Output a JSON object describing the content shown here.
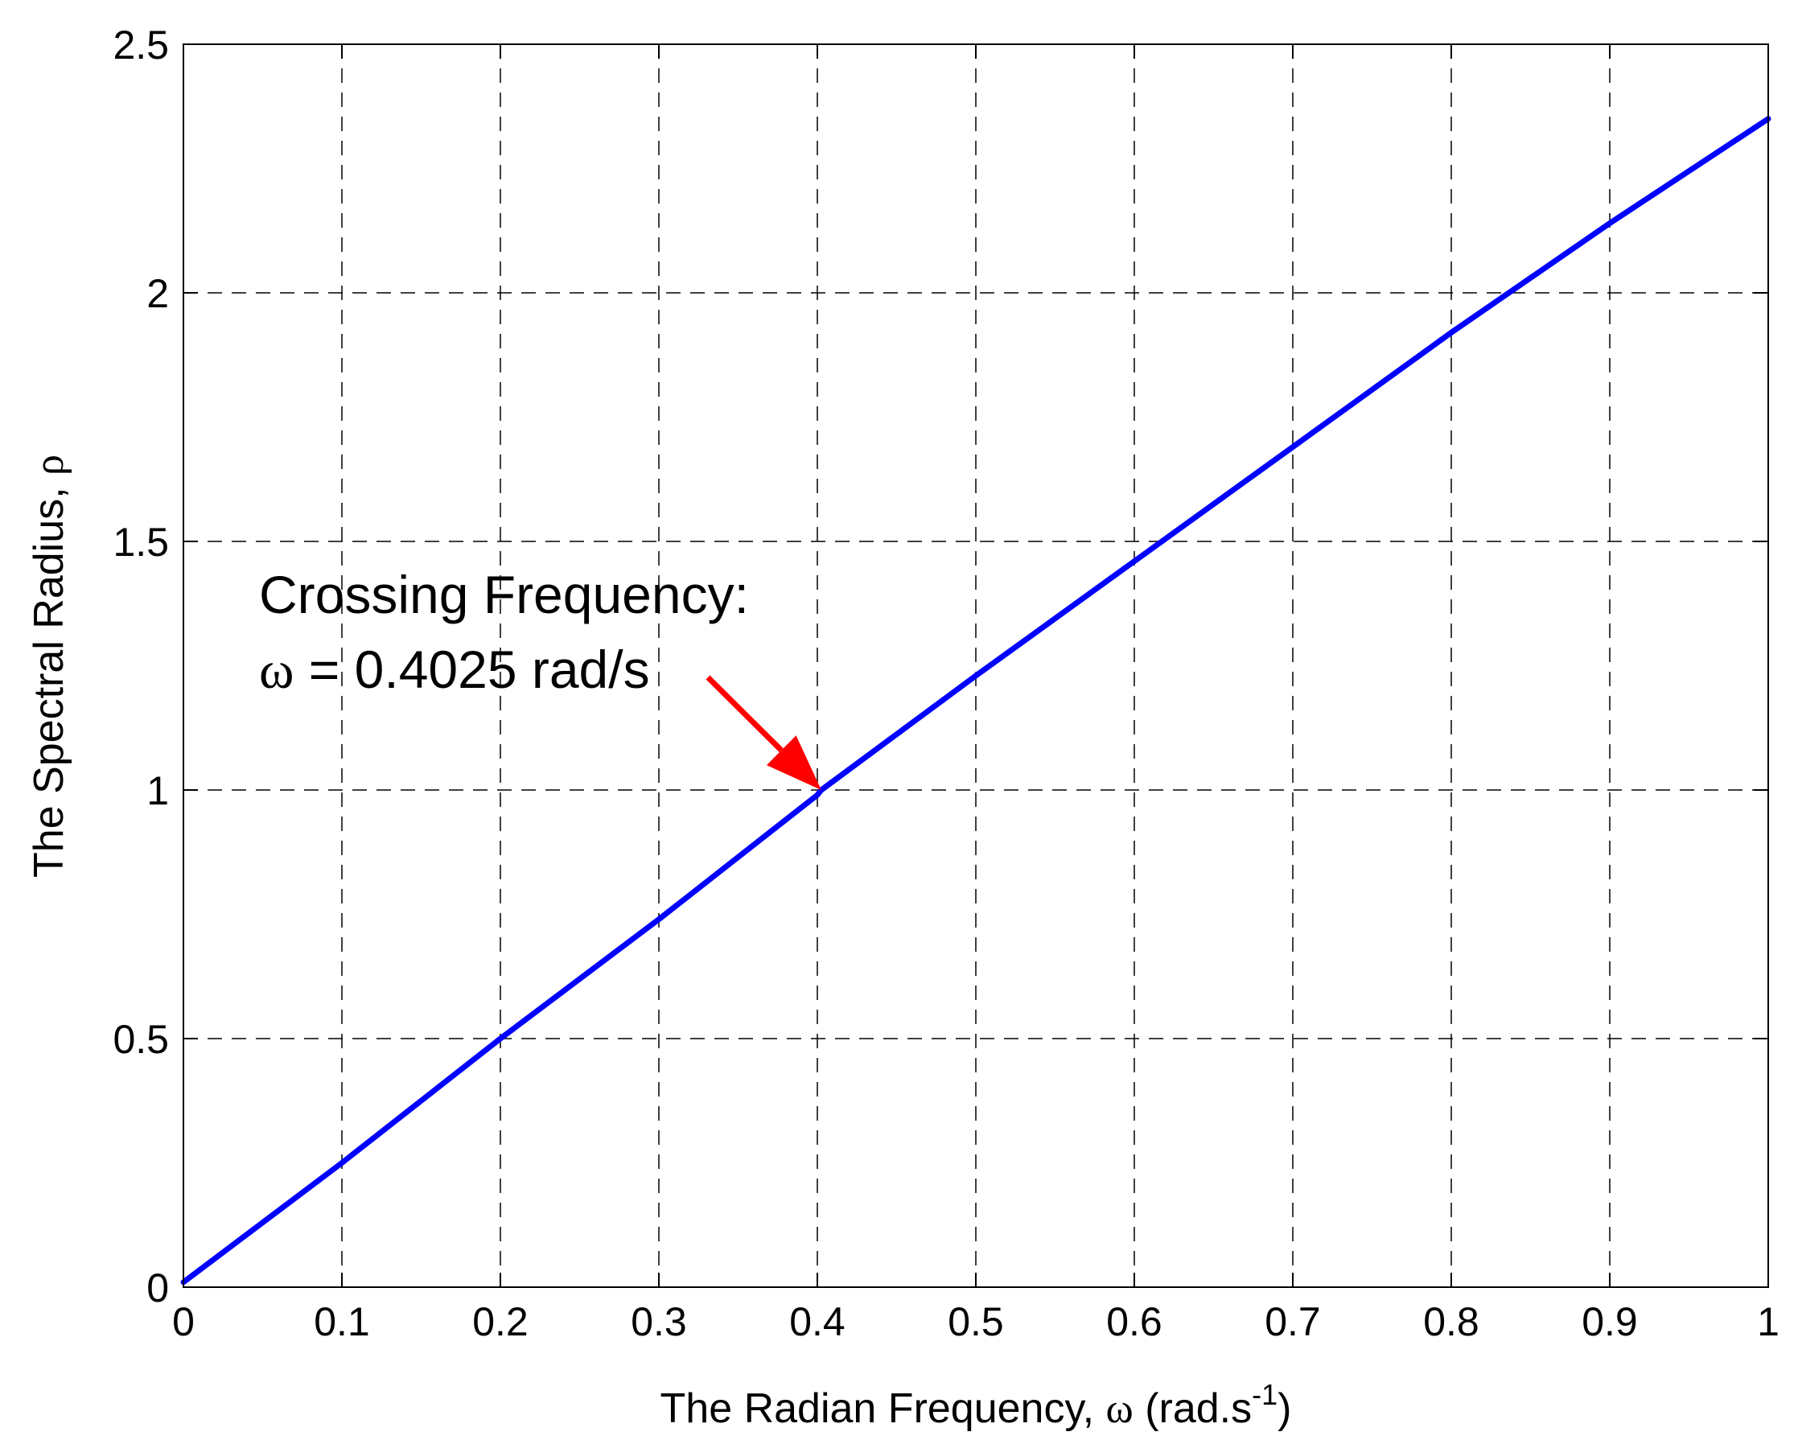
{
  "chart_data": {
    "type": "line",
    "title": "",
    "xlabel": {
      "text": "The Radian Frequency, ",
      "symbol": "ω",
      "unit_prefix": " (rad.s",
      "unit_exponent": "-1",
      "unit_suffix": ")"
    },
    "ylabel": {
      "text": "The Spectral Radius, ",
      "symbol": "ρ"
    },
    "xlim": [
      0,
      1
    ],
    "ylim": [
      0,
      2.5
    ],
    "grid": true,
    "grid_style": "dashed",
    "x_ticks": [
      0,
      0.1,
      0.2,
      0.3,
      0.4,
      0.5,
      0.6,
      0.7,
      0.8,
      0.9,
      1
    ],
    "x_tick_labels": [
      "0",
      "0.1",
      "0.2",
      "0.3",
      "0.4",
      "0.5",
      "0.6",
      "0.7",
      "0.8",
      "0.9",
      "1"
    ],
    "y_ticks": [
      0,
      0.5,
      1,
      1.5,
      2,
      2.5
    ],
    "y_tick_labels": [
      "0",
      "0.5",
      "1",
      "1.5",
      "2",
      "2.5"
    ],
    "series": [
      {
        "color": "#0000ff",
        "x": [
          0,
          0.1,
          0.2,
          0.3,
          0.4,
          0.4025,
          0.5,
          0.6,
          0.7,
          0.8,
          0.9,
          1.0
        ],
        "y": [
          0.01,
          0.25,
          0.5,
          0.74,
          0.99,
          1.0,
          1.23,
          1.46,
          1.69,
          1.92,
          2.14,
          2.35
        ]
      }
    ],
    "annotation": {
      "line1": "Crossing Frequency:",
      "line2_symbol": "ω",
      "line2_text": " = 0.4025 rad/s",
      "point": {
        "x": 0.4025,
        "y": 1.0
      },
      "arrow_color": "#ff0000"
    }
  }
}
